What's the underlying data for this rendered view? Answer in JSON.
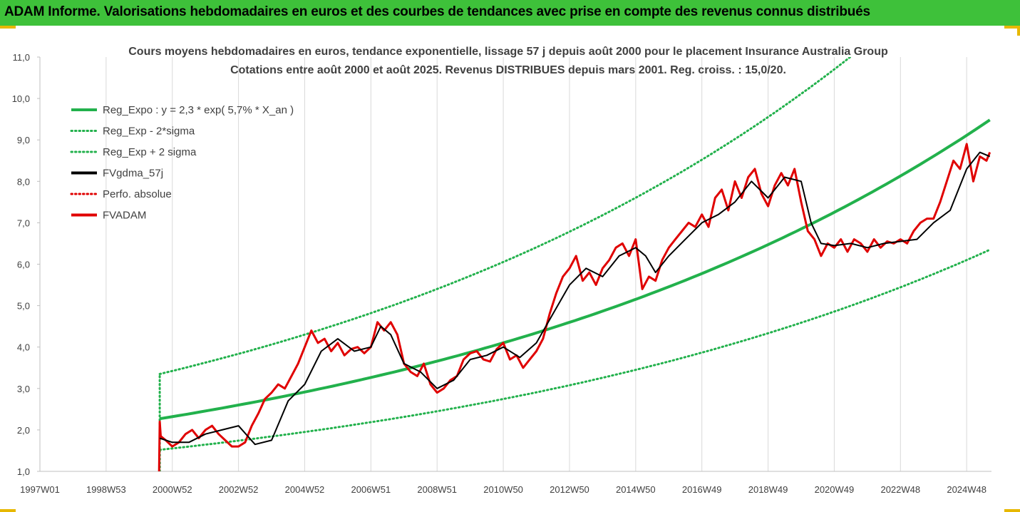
{
  "header": {
    "title": "ADAM Informe. Valorisations hebdomadaires en euros et des courbes de tendances avec prise en compte des revenus connus distribués",
    "bg_color": "#3ec13a"
  },
  "chart_data": {
    "type": "line",
    "title_line1": "Cours moyens hebdomadaires en euros, tendance exponentielle, lissage 57 j depuis août 2000 pour le placement Insurance Australia Group",
    "title_line2": "Cotations entre août 2000 et août 2025. Revenus DISTRIBUES depuis mars 2001. Reg. croiss. : 15,0/20.",
    "x_tick_labels": [
      "1997W01",
      "1998W53",
      "2000W52",
      "2002W52",
      "2004W52",
      "2006W51",
      "2008W51",
      "2010W50",
      "2012W50",
      "2014W50",
      "2016W49",
      "2018W49",
      "2020W49",
      "2022W48",
      "2024W48"
    ],
    "x_tick_years": [
      1997.0,
      1999.0,
      2001.0,
      2003.0,
      2005.0,
      2007.0,
      2009.0,
      2011.0,
      2013.0,
      2015.0,
      2017.0,
      2019.0,
      2021.0,
      2023.0,
      2025.0
    ],
    "xlim": [
      1997.0,
      2025.75
    ],
    "ylim": [
      1.0,
      11.0
    ],
    "y_tick_labels": [
      "1,0",
      "2,0",
      "3,0",
      "4,0",
      "5,0",
      "6,0",
      "7,0",
      "8,0",
      "9,0",
      "10,0",
      "11,0"
    ],
    "y_ticks": [
      1,
      2,
      3,
      4,
      5,
      6,
      7,
      8,
      9,
      10,
      11
    ],
    "grid": "vertical",
    "legend": {
      "position": "top-left",
      "entries": [
        {
          "label": "Reg_Expo : y = 2,3 * exp( 5,7% *  X_an )",
          "color": "#22b14c",
          "style": "solid"
        },
        {
          "label": "Reg_Exp - 2*sigma",
          "color": "#22b14c",
          "style": "dotted"
        },
        {
          "label": "Reg_Exp + 2 sigma",
          "color": "#22b14c",
          "style": "dotted"
        },
        {
          "label": "FVgdma_57j",
          "color": "#000000",
          "style": "solid"
        },
        {
          "label": "Perfo. absolue",
          "color": "#e00000",
          "style": "dotted"
        },
        {
          "label": "FVADAM",
          "color": "#e00000",
          "style": "solid"
        }
      ]
    },
    "series": [
      {
        "name": "Reg_Expo : y = 2,3 * exp( 5,7% *  X_an )",
        "kind": "exp",
        "start": 2000.62,
        "end": 2025.7,
        "y0": 2.27,
        "rate": 0.057
      },
      {
        "name": "Reg_Exp - 2*sigma",
        "kind": "exp",
        "start": 2000.62,
        "end": 2025.7,
        "y0": 1.52,
        "rate": 0.057
      },
      {
        "name": "Reg_Exp + 2 sigma",
        "kind": "exp",
        "start": 2000.62,
        "end": 2025.7,
        "y0": 3.35,
        "rate": 0.057
      },
      {
        "name": "FVgdma_57j",
        "kind": "points",
        "x": [
          2000.62,
          2001.0,
          2001.5,
          2002.0,
          2002.5,
          2003.0,
          2003.5,
          2004.0,
          2004.5,
          2005.0,
          2005.5,
          2006.0,
          2006.5,
          2007.0,
          2007.3,
          2007.6,
          2008.0,
          2008.5,
          2009.0,
          2009.5,
          2010.0,
          2010.5,
          2011.0,
          2011.5,
          2012.0,
          2012.5,
          2013.0,
          2013.5,
          2014.0,
          2014.5,
          2015.0,
          2015.3,
          2015.6,
          2016.0,
          2016.5,
          2017.0,
          2017.5,
          2018.0,
          2018.5,
          2019.0,
          2019.5,
          2020.0,
          2020.3,
          2020.6,
          2021.0,
          2021.5,
          2022.0,
          2022.5,
          2023.0,
          2023.5,
          2024.0,
          2024.5,
          2025.0,
          2025.4,
          2025.7
        ],
        "y": [
          1.8,
          1.7,
          1.7,
          1.9,
          2.0,
          2.1,
          1.65,
          1.75,
          2.7,
          3.1,
          3.9,
          4.2,
          3.9,
          4.0,
          4.5,
          4.3,
          3.6,
          3.4,
          3.0,
          3.2,
          3.7,
          3.8,
          4.0,
          3.75,
          4.1,
          4.8,
          5.5,
          5.9,
          5.7,
          6.2,
          6.4,
          6.2,
          5.8,
          6.2,
          6.6,
          7.0,
          7.2,
          7.5,
          8.0,
          7.6,
          8.1,
          8.0,
          7.0,
          6.5,
          6.45,
          6.5,
          6.4,
          6.5,
          6.55,
          6.6,
          7.0,
          7.3,
          8.3,
          8.7,
          8.6
        ]
      },
      {
        "name": "FVADAM",
        "kind": "points",
        "x": [
          2000.6,
          2000.62,
          2000.65,
          2000.8,
          2001.0,
          2001.2,
          2001.4,
          2001.6,
          2001.8,
          2002.0,
          2002.2,
          2002.4,
          2002.6,
          2002.8,
          2003.0,
          2003.2,
          2003.4,
          2003.6,
          2003.8,
          2004.0,
          2004.2,
          2004.4,
          2004.6,
          2004.8,
          2005.0,
          2005.2,
          2005.4,
          2005.6,
          2005.8,
          2006.0,
          2006.2,
          2006.4,
          2006.6,
          2006.8,
          2007.0,
          2007.2,
          2007.4,
          2007.6,
          2007.8,
          2008.0,
          2008.2,
          2008.4,
          2008.6,
          2008.8,
          2009.0,
          2009.2,
          2009.4,
          2009.6,
          2009.8,
          2010.0,
          2010.2,
          2010.4,
          2010.6,
          2010.8,
          2011.0,
          2011.2,
          2011.4,
          2011.6,
          2011.8,
          2012.0,
          2012.2,
          2012.4,
          2012.6,
          2012.8,
          2013.0,
          2013.2,
          2013.4,
          2013.6,
          2013.8,
          2014.0,
          2014.2,
          2014.4,
          2014.6,
          2014.8,
          2015.0,
          2015.2,
          2015.4,
          2015.6,
          2015.8,
          2016.0,
          2016.2,
          2016.4,
          2016.6,
          2016.8,
          2017.0,
          2017.2,
          2017.4,
          2017.6,
          2017.8,
          2018.0,
          2018.2,
          2018.4,
          2018.6,
          2018.8,
          2019.0,
          2019.2,
          2019.4,
          2019.6,
          2019.8,
          2020.0,
          2020.2,
          2020.4,
          2020.6,
          2020.8,
          2021.0,
          2021.2,
          2021.4,
          2021.6,
          2021.8,
          2022.0,
          2022.2,
          2022.4,
          2022.6,
          2022.8,
          2023.0,
          2023.2,
          2023.4,
          2023.6,
          2023.8,
          2024.0,
          2024.2,
          2024.4,
          2024.6,
          2024.8,
          2025.0,
          2025.2,
          2025.4,
          2025.6,
          2025.7
        ],
        "y": [
          1.0,
          2.2,
          1.85,
          1.75,
          1.6,
          1.7,
          1.9,
          2.0,
          1.8,
          2.0,
          2.1,
          1.9,
          1.75,
          1.6,
          1.6,
          1.7,
          2.1,
          2.4,
          2.75,
          2.9,
          3.1,
          3.0,
          3.3,
          3.6,
          4.0,
          4.4,
          4.1,
          4.2,
          3.9,
          4.1,
          3.8,
          3.95,
          4.0,
          3.85,
          4.0,
          4.6,
          4.4,
          4.6,
          4.3,
          3.6,
          3.4,
          3.3,
          3.6,
          3.1,
          2.9,
          3.0,
          3.2,
          3.3,
          3.7,
          3.85,
          3.9,
          3.7,
          3.65,
          3.95,
          4.1,
          3.7,
          3.8,
          3.5,
          3.7,
          3.9,
          4.2,
          4.8,
          5.3,
          5.7,
          5.9,
          6.2,
          5.6,
          5.8,
          5.5,
          5.9,
          6.1,
          6.4,
          6.5,
          6.2,
          6.6,
          5.4,
          5.7,
          5.6,
          6.1,
          6.4,
          6.6,
          6.8,
          7.0,
          6.9,
          7.2,
          6.9,
          7.6,
          7.8,
          7.3,
          8.0,
          7.6,
          8.1,
          8.3,
          7.7,
          7.4,
          7.9,
          8.2,
          7.9,
          8.3,
          7.5,
          6.8,
          6.6,
          6.2,
          6.5,
          6.4,
          6.6,
          6.3,
          6.6,
          6.5,
          6.3,
          6.6,
          6.4,
          6.55,
          6.5,
          6.6,
          6.5,
          6.8,
          7.0,
          7.1,
          7.1,
          7.5,
          8.0,
          8.5,
          8.3,
          8.9,
          8.0,
          8.6,
          8.5,
          8.7
        ]
      }
    ]
  }
}
